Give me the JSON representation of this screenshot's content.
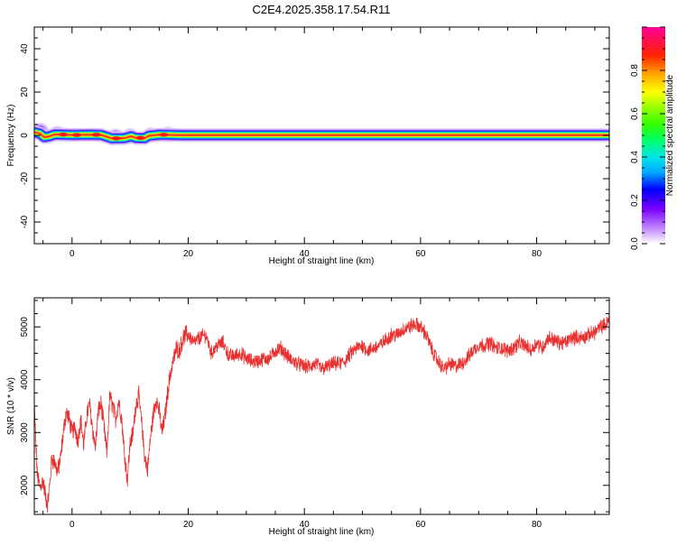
{
  "title": "C2E4.2025.358.17.54.R11",
  "colors": {
    "snr_line": "#e8302f",
    "ridge": "#ff2a2a",
    "axis": "#000000"
  },
  "chart_data": [
    {
      "type": "heatmap",
      "name": "spectrogram",
      "xlabel": "Height of straight line (km)",
      "ylabel": "Frequency (Hz)",
      "xlim": [
        -6.5,
        92.5
      ],
      "ylim": [
        -50,
        50
      ],
      "xticks": [
        0,
        20,
        40,
        60,
        80
      ],
      "yticks": [
        -40,
        -20,
        0,
        20,
        40
      ],
      "ridge": {
        "x": [
          -6.5,
          -5.5,
          -4.8,
          -4.0,
          -3.0,
          0,
          3,
          5,
          6.2,
          6.8,
          9,
          10.2,
          11,
          12.5,
          13.2,
          15,
          17,
          19,
          92.5
        ],
        "freq": [
          1.5,
          0.8,
          -0.8,
          -0.5,
          0.4,
          0.2,
          0.3,
          0.2,
          -0.8,
          -1.4,
          -1.3,
          -0.4,
          -1.2,
          -1.3,
          -0.2,
          0.3,
          0.2,
          0.1,
          0.1
        ]
      },
      "blobs": [
        {
          "x": -5.5,
          "f": 1.8,
          "w": 3.2,
          "h": 8.5
        },
        {
          "x": -2.5,
          "f": 1.0,
          "w": 3.0,
          "h": 7.0
        },
        {
          "x": 3.5,
          "f": 0.5,
          "w": 2.8,
          "h": 6.0
        },
        {
          "x": 7.5,
          "f": -0.5,
          "w": 3.2,
          "h": 7.5
        },
        {
          "x": 10.0,
          "f": 0.2,
          "w": 2.5,
          "h": 6.5
        },
        {
          "x": 13.5,
          "f": 0.4,
          "w": 2.5,
          "h": 7.0
        },
        {
          "x": 16.5,
          "f": 0.5,
          "w": 3.0,
          "h": 7.5
        }
      ],
      "colorbar": {
        "label": "Normalized spectral amplitude",
        "ticks": [
          "0.0",
          "0.2",
          "0.4",
          "0.6",
          "0.8"
        ],
        "tick_values": [
          0.0,
          0.2,
          0.4,
          0.6,
          0.8
        ],
        "range": [
          0,
          1
        ]
      }
    },
    {
      "type": "line",
      "name": "snr",
      "xlabel": "Height of straight line (km)",
      "ylabel": "SNR (10 * v/v)",
      "xlim": [
        -6.5,
        92.5
      ],
      "ylim": [
        1450,
        5550
      ],
      "xticks": [
        0,
        20,
        40,
        60,
        80
      ],
      "yticks": [
        2000,
        3000,
        4000,
        5000
      ],
      "series": [
        {
          "name": "SNR",
          "x": [
            -6.5,
            -6.0,
            -5.5,
            -5.0,
            -4.5,
            -4.2,
            -3.8,
            -3.5,
            -3.0,
            -2.5,
            -2.0,
            -1.5,
            -1.0,
            -0.5,
            0.0,
            0.5,
            1.0,
            1.5,
            2.0,
            2.5,
            3.0,
            3.5,
            4.0,
            4.5,
            5.0,
            5.5,
            6.0,
            6.5,
            7.0,
            7.5,
            8.0,
            8.5,
            9.0,
            9.5,
            10.0,
            10.5,
            11.0,
            11.5,
            12.0,
            12.5,
            13.0,
            13.5,
            14.0,
            14.5,
            15.0,
            15.5,
            16.0,
            16.5,
            17.0,
            17.5,
            18.0,
            18.5,
            19.0,
            19.5,
            20.0,
            21.0,
            22.0,
            23.0,
            24.0,
            25.0,
            26.0,
            27.0,
            28.0,
            29.0,
            30.0,
            31.0,
            32.0,
            33.0,
            34.0,
            35.0,
            36.0,
            37.0,
            38.0,
            39.0,
            40.0,
            41.0,
            42.0,
            43.0,
            44.0,
            45.0,
            46.0,
            47.0,
            48.0,
            49.0,
            50.0,
            51.0,
            52.0,
            53.0,
            54.0,
            55.0,
            56.0,
            57.0,
            58.0,
            59.0,
            60.0,
            61.0,
            62.0,
            63.0,
            64.0,
            65.0,
            66.0,
            67.0,
            68.0,
            69.0,
            70.0,
            71.0,
            72.0,
            73.0,
            74.0,
            75.0,
            76.0,
            77.0,
            78.0,
            79.0,
            80.0,
            81.0,
            82.0,
            83.0,
            84.0,
            85.0,
            86.0,
            87.0,
            88.0,
            89.0,
            90.0,
            91.0,
            92.0,
            92.5
          ],
          "y": [
            3500,
            2200,
            1950,
            2100,
            1750,
            1650,
            2050,
            2500,
            2450,
            2250,
            2500,
            3000,
            3400,
            3250,
            3000,
            3100,
            2850,
            3250,
            2750,
            3300,
            3550,
            3100,
            2700,
            3400,
            3550,
            3100,
            2600,
            3700,
            3500,
            3250,
            3600,
            3300,
            2650,
            2100,
            2800,
            3000,
            3550,
            3700,
            3150,
            2550,
            2300,
            2900,
            3350,
            3650,
            3400,
            3000,
            3300,
            3800,
            4150,
            4400,
            4600,
            4550,
            4750,
            4850,
            4850,
            4700,
            4800,
            4850,
            4500,
            4650,
            4700,
            4450,
            4450,
            4500,
            4400,
            4350,
            4350,
            4400,
            4400,
            4550,
            4600,
            4450,
            4350,
            4300,
            4250,
            4250,
            4300,
            4200,
            4250,
            4300,
            4300,
            4350,
            4500,
            4600,
            4650,
            4550,
            4600,
            4650,
            4750,
            4850,
            4850,
            4950,
            5000,
            5050,
            5000,
            4850,
            4550,
            4350,
            4200,
            4300,
            4250,
            4300,
            4400,
            4550,
            4650,
            4650,
            4700,
            4600,
            4600,
            4550,
            4600,
            4700,
            4650,
            4550,
            4700,
            4600,
            4800,
            4750,
            4700,
            4700,
            4800,
            4800,
            4800,
            4850,
            4900,
            5000,
            5050,
            5150
          ]
        }
      ]
    }
  ]
}
